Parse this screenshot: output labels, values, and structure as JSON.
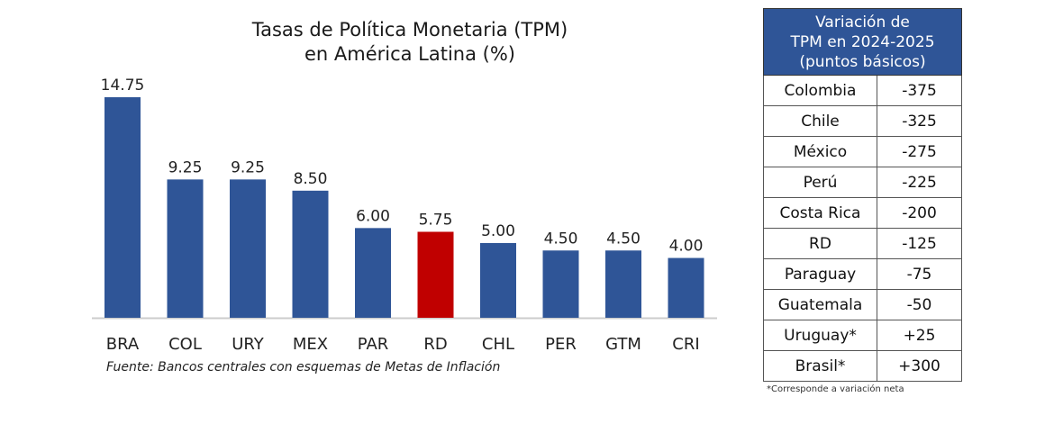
{
  "chart_data": {
    "type": "bar",
    "title": [
      "Tasas de Política Monetaria (TPM)",
      "en América Latina (%)"
    ],
    "categories": [
      "BRA",
      "COL",
      "URY",
      "MEX",
      "PAR",
      "RD",
      "CHL",
      "PER",
      "GTM",
      "CRI"
    ],
    "values": [
      14.75,
      9.25,
      9.25,
      8.5,
      6.0,
      5.75,
      5.0,
      4.5,
      4.5,
      4.0
    ],
    "value_labels": [
      "14.75",
      "9.25",
      "9.25",
      "8.50",
      "6.00",
      "5.75",
      "5.00",
      "4.50",
      "4.50",
      "4.00"
    ],
    "highlight_category": "RD",
    "colors": {
      "default": "#2f5597",
      "highlight": "#c00000",
      "axis": "#cccccc"
    },
    "ylim": [
      0,
      14.75
    ],
    "xlabel": "",
    "ylabel": "",
    "grid": false
  },
  "source": "Fuente: Bancos centrales con esquemas de Metas de Inflación",
  "table": {
    "header": [
      "Variación de",
      "TPM en 2024-2025",
      "(puntos básicos)"
    ],
    "rows": [
      {
        "country": "Colombia",
        "value": "-375"
      },
      {
        "country": "Chile",
        "value": "-325"
      },
      {
        "country": "México",
        "value": "-275"
      },
      {
        "country": "Perú",
        "value": "-225"
      },
      {
        "country": "Costa Rica",
        "value": "-200"
      },
      {
        "country": "RD",
        "value": "-125"
      },
      {
        "country": "Paraguay",
        "value": "-75"
      },
      {
        "country": "Guatemala",
        "value": "-50"
      },
      {
        "country": "Uruguay*",
        "value": "+25"
      },
      {
        "country": "Brasil*",
        "value": "+300"
      }
    ],
    "header_color": "#2f5597",
    "footnote": "*Corresponde a variación neta"
  }
}
